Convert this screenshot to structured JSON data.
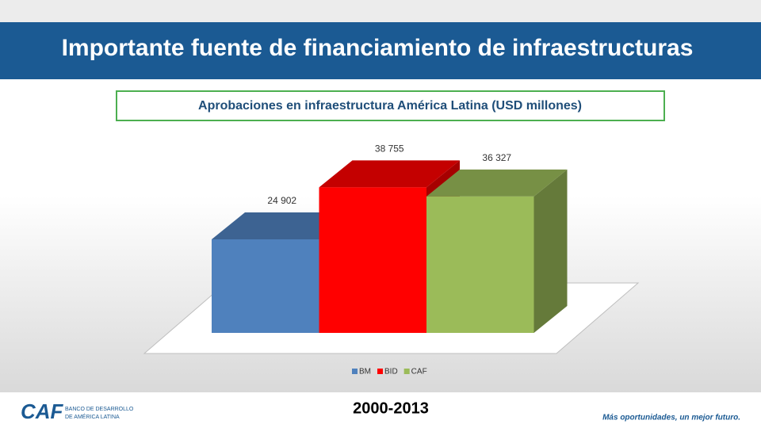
{
  "header": {
    "title": "Importante fuente de financiamiento de infraestructuras"
  },
  "chart_data": {
    "type": "bar3d",
    "title": "Aprobaciones en infraestructura América Latina (USD millones)",
    "categories": [
      null
    ],
    "series": [
      {
        "name": "BM",
        "color": "#4f81bd",
        "values": [
          24902
        ],
        "value_labels": [
          "24 902"
        ]
      },
      {
        "name": "BID",
        "color": "#ff0000",
        "values": [
          38755
        ],
        "value_labels": [
          "38 755"
        ]
      },
      {
        "name": "CAF",
        "color": "#9bbb59",
        "values": [
          36327
        ],
        "value_labels": [
          "36 327"
        ]
      }
    ],
    "legend": "bottom"
  },
  "footer": {
    "period": "2000-2013",
    "logo": "CAF",
    "logo_text": [
      "BANCO DE DESARROLLO",
      "DE AMÉRICA LATINA"
    ],
    "slogan": "Más oportunidades, un mejor futuro."
  }
}
